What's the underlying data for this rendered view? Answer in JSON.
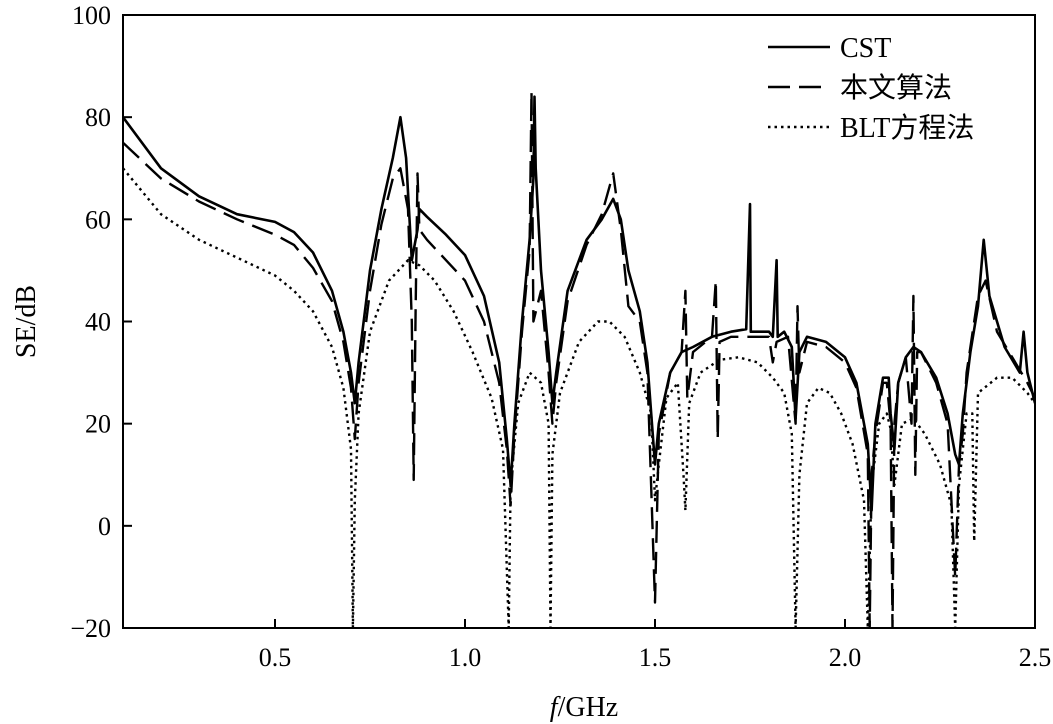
{
  "chart_data": {
    "type": "line",
    "title": "",
    "xlabel_italic": "f",
    "xlabel_rest": "/GHz",
    "ylabel": "SE/dB",
    "xlim": [
      0.1,
      2.5
    ],
    "ylim": [
      -20,
      100
    ],
    "xticks": [
      0.5,
      1.0,
      1.5,
      2.0,
      2.5
    ],
    "xtick_labels": [
      "0.5",
      "1.0",
      "1.5",
      "2.0",
      "2.5"
    ],
    "yticks": [
      -20,
      0,
      20,
      40,
      60,
      80,
      100
    ],
    "ytick_labels": [
      "−20",
      "0",
      "20",
      "40",
      "60",
      "80",
      "100"
    ],
    "grid": false,
    "legend_position": "top-right",
    "series": [
      {
        "name": "CST",
        "style": "solid",
        "points": [
          [
            0.1,
            80
          ],
          [
            0.2,
            70
          ],
          [
            0.3,
            64.5
          ],
          [
            0.4,
            61
          ],
          [
            0.5,
            59.5
          ],
          [
            0.55,
            57.5
          ],
          [
            0.6,
            53.5
          ],
          [
            0.65,
            46
          ],
          [
            0.68,
            38
          ],
          [
            0.7,
            30
          ],
          [
            0.71,
            24
          ],
          [
            0.72,
            32
          ],
          [
            0.75,
            50
          ],
          [
            0.78,
            62
          ],
          [
            0.81,
            72
          ],
          [
            0.83,
            80
          ],
          [
            0.845,
            72
          ],
          [
            0.86,
            52
          ],
          [
            0.875,
            58
          ],
          [
            0.88,
            62
          ],
          [
            0.9,
            60.5
          ],
          [
            0.95,
            57
          ],
          [
            1.0,
            53
          ],
          [
            1.05,
            45
          ],
          [
            1.09,
            32
          ],
          [
            1.11,
            17
          ],
          [
            1.12,
            8
          ],
          [
            1.13,
            20
          ],
          [
            1.15,
            40
          ],
          [
            1.17,
            56
          ],
          [
            1.18,
            68
          ],
          [
            1.183,
            84
          ],
          [
            1.186,
            70
          ],
          [
            1.2,
            50
          ],
          [
            1.22,
            34
          ],
          [
            1.23,
            24
          ],
          [
            1.24,
            30
          ],
          [
            1.27,
            46
          ],
          [
            1.32,
            56
          ],
          [
            1.36,
            60
          ],
          [
            1.39,
            64
          ],
          [
            1.41,
            60
          ],
          [
            1.43,
            50
          ],
          [
            1.46,
            42
          ],
          [
            1.48,
            32
          ],
          [
            1.5,
            12
          ],
          [
            1.51,
            20
          ],
          [
            1.54,
            30
          ],
          [
            1.57,
            34
          ],
          [
            1.6,
            35
          ],
          [
            1.65,
            37
          ],
          [
            1.7,
            38
          ],
          [
            1.74,
            38.5
          ],
          [
            1.75,
            63
          ],
          [
            1.752,
            38
          ],
          [
            1.8,
            38
          ],
          [
            1.81,
            37
          ],
          [
            1.82,
            52
          ],
          [
            1.823,
            37
          ],
          [
            1.84,
            38
          ],
          [
            1.86,
            35
          ],
          [
            1.87,
            21
          ],
          [
            1.88,
            34
          ],
          [
            1.9,
            37
          ],
          [
            1.95,
            36
          ],
          [
            2.0,
            33
          ],
          [
            2.03,
            28
          ],
          [
            2.06,
            16
          ],
          [
            2.07,
            3
          ],
          [
            2.08,
            20
          ],
          [
            2.1,
            29
          ],
          [
            2.115,
            29
          ],
          [
            2.12,
            22
          ],
          [
            2.13,
            15
          ],
          [
            2.14,
            28
          ],
          [
            2.16,
            33
          ],
          [
            2.18,
            35
          ],
          [
            2.2,
            34
          ],
          [
            2.24,
            29
          ],
          [
            2.27,
            22
          ],
          [
            2.29,
            14
          ],
          [
            2.3,
            12
          ],
          [
            2.31,
            22
          ],
          [
            2.33,
            34
          ],
          [
            2.35,
            43
          ],
          [
            2.365,
            56
          ],
          [
            2.38,
            45
          ],
          [
            2.42,
            35
          ],
          [
            2.46,
            30
          ],
          [
            2.47,
            38
          ],
          [
            2.48,
            30
          ],
          [
            2.5,
            24
          ]
        ]
      },
      {
        "name": "本文算法",
        "style": "dashed",
        "points": [
          [
            0.1,
            75
          ],
          [
            0.2,
            68
          ],
          [
            0.3,
            63.5
          ],
          [
            0.4,
            60
          ],
          [
            0.5,
            57
          ],
          [
            0.55,
            55
          ],
          [
            0.6,
            50.5
          ],
          [
            0.65,
            44
          ],
          [
            0.68,
            36
          ],
          [
            0.7,
            27
          ],
          [
            0.71,
            17
          ],
          [
            0.72,
            28
          ],
          [
            0.75,
            46
          ],
          [
            0.78,
            59
          ],
          [
            0.81,
            68
          ],
          [
            0.83,
            70
          ],
          [
            0.85,
            62
          ],
          [
            0.86,
            40
          ],
          [
            0.865,
            9
          ],
          [
            0.87,
            42
          ],
          [
            0.875,
            69
          ],
          [
            0.88,
            58
          ],
          [
            0.9,
            56
          ],
          [
            0.95,
            52
          ],
          [
            1.0,
            48
          ],
          [
            1.05,
            40
          ],
          [
            1.09,
            28
          ],
          [
            1.11,
            15
          ],
          [
            1.12,
            4
          ],
          [
            1.13,
            18
          ],
          [
            1.15,
            38
          ],
          [
            1.17,
            54
          ],
          [
            1.175,
            85
          ],
          [
            1.18,
            40
          ],
          [
            1.2,
            46
          ],
          [
            1.22,
            30
          ],
          [
            1.23,
            20
          ],
          [
            1.24,
            28
          ],
          [
            1.27,
            44
          ],
          [
            1.32,
            55
          ],
          [
            1.36,
            61
          ],
          [
            1.39,
            69
          ],
          [
            1.41,
            58
          ],
          [
            1.43,
            43
          ],
          [
            1.46,
            40
          ],
          [
            1.48,
            30
          ],
          [
            1.5,
            -15
          ],
          [
            1.51,
            18
          ],
          [
            1.54,
            30
          ],
          [
            1.57,
            34
          ],
          [
            1.58,
            46
          ],
          [
            1.585,
            25
          ],
          [
            1.6,
            34
          ],
          [
            1.65,
            37
          ],
          [
            1.66,
            48
          ],
          [
            1.665,
            17
          ],
          [
            1.67,
            36
          ],
          [
            1.7,
            37
          ],
          [
            1.75,
            37
          ],
          [
            1.8,
            37
          ],
          [
            1.81,
            32
          ],
          [
            1.82,
            36
          ],
          [
            1.85,
            37
          ],
          [
            1.87,
            20
          ],
          [
            1.875,
            43
          ],
          [
            1.88,
            30
          ],
          [
            1.9,
            36
          ],
          [
            1.95,
            35
          ],
          [
            2.0,
            32
          ],
          [
            2.03,
            27
          ],
          [
            2.06,
            14
          ],
          [
            2.065,
            -20
          ],
          [
            2.07,
            10
          ],
          [
            2.08,
            18
          ],
          [
            2.1,
            28
          ],
          [
            2.11,
            28
          ],
          [
            2.12,
            20
          ],
          [
            2.125,
            -20
          ],
          [
            2.13,
            20
          ],
          [
            2.14,
            28
          ],
          [
            2.16,
            33
          ],
          [
            2.175,
            20
          ],
          [
            2.18,
            45
          ],
          [
            2.185,
            10
          ],
          [
            2.19,
            34
          ],
          [
            2.2,
            34
          ],
          [
            2.24,
            28
          ],
          [
            2.27,
            20
          ],
          [
            2.29,
            -10
          ],
          [
            2.3,
            12
          ],
          [
            2.31,
            18
          ],
          [
            2.32,
            30
          ],
          [
            2.34,
            40
          ],
          [
            2.35,
            45
          ],
          [
            2.37,
            48
          ],
          [
            2.4,
            38
          ],
          [
            2.44,
            33
          ],
          [
            2.48,
            28
          ],
          [
            2.5,
            25
          ]
        ]
      },
      {
        "name": "BLT方程法",
        "style": "dotted",
        "points": [
          [
            0.1,
            70
          ],
          [
            0.2,
            61
          ],
          [
            0.3,
            56
          ],
          [
            0.4,
            52.5
          ],
          [
            0.5,
            49
          ],
          [
            0.55,
            46
          ],
          [
            0.6,
            42
          ],
          [
            0.65,
            35
          ],
          [
            0.68,
            27
          ],
          [
            0.7,
            15
          ],
          [
            0.705,
            -20
          ],
          [
            0.71,
            5
          ],
          [
            0.72,
            22
          ],
          [
            0.75,
            38
          ],
          [
            0.8,
            48
          ],
          [
            0.85,
            52
          ],
          [
            0.88,
            51
          ],
          [
            0.92,
            48
          ],
          [
            0.97,
            42
          ],
          [
            1.02,
            34
          ],
          [
            1.07,
            25
          ],
          [
            1.1,
            15
          ],
          [
            1.115,
            -20
          ],
          [
            1.12,
            8
          ],
          [
            1.14,
            24
          ],
          [
            1.17,
            30
          ],
          [
            1.2,
            28
          ],
          [
            1.22,
            20
          ],
          [
            1.225,
            -20
          ],
          [
            1.23,
            14
          ],
          [
            1.25,
            26
          ],
          [
            1.3,
            36
          ],
          [
            1.35,
            40
          ],
          [
            1.38,
            40
          ],
          [
            1.42,
            37
          ],
          [
            1.46,
            30
          ],
          [
            1.49,
            22
          ],
          [
            1.5,
            5
          ],
          [
            1.51,
            12
          ],
          [
            1.53,
            25
          ],
          [
            1.56,
            28
          ],
          [
            1.575,
            10
          ],
          [
            1.58,
            3
          ],
          [
            1.59,
            24
          ],
          [
            1.62,
            30
          ],
          [
            1.67,
            32.5
          ],
          [
            1.72,
            33
          ],
          [
            1.77,
            32
          ],
          [
            1.81,
            29
          ],
          [
            1.84,
            26
          ],
          [
            1.86,
            18
          ],
          [
            1.87,
            -20
          ],
          [
            1.88,
            10
          ],
          [
            1.9,
            24
          ],
          [
            1.93,
            27
          ],
          [
            1.96,
            26
          ],
          [
            1.99,
            22
          ],
          [
            2.02,
            16
          ],
          [
            2.05,
            5
          ],
          [
            2.06,
            -20
          ],
          [
            2.07,
            8
          ],
          [
            2.09,
            20
          ],
          [
            2.11,
            22
          ],
          [
            2.12,
            19
          ],
          [
            2.13,
            8
          ],
          [
            2.15,
            20
          ],
          [
            2.18,
            21
          ],
          [
            2.21,
            18
          ],
          [
            2.25,
            12
          ],
          [
            2.28,
            4
          ],
          [
            2.29,
            -20
          ],
          [
            2.3,
            8
          ],
          [
            2.32,
            22
          ],
          [
            2.335,
            22
          ],
          [
            2.34,
            -3
          ],
          [
            2.35,
            26
          ],
          [
            2.4,
            29
          ],
          [
            2.44,
            29
          ],
          [
            2.48,
            26
          ],
          [
            2.5,
            24
          ]
        ]
      }
    ]
  }
}
